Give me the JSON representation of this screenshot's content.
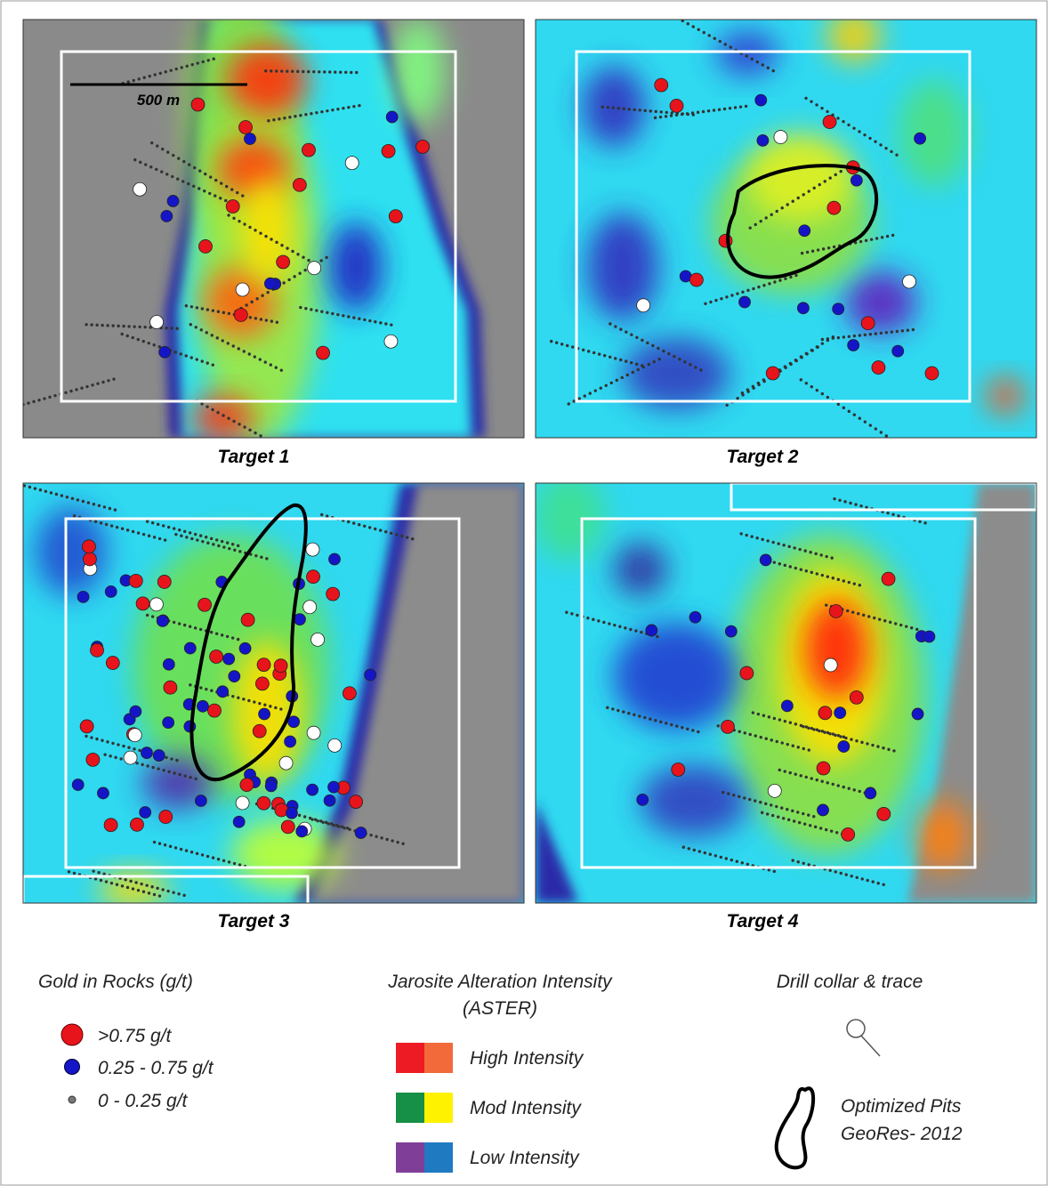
{
  "scale_bar": "500 m",
  "panels": [
    {
      "label": "Target 1"
    },
    {
      "label": "Target 2"
    },
    {
      "label": "Target 3"
    },
    {
      "label": "Target 4"
    }
  ],
  "legend": {
    "gold": {
      "title": "Gold in Rocks (g/t)",
      "items": [
        ">0.75 g/t",
        "0.25 - 0.75 g/t",
        "0 - 0.25 g/t"
      ]
    },
    "jarosite": {
      "title": [
        "Jarosite Alteration Intensity",
        "(ASTER)"
      ],
      "items": [
        "High Intensity",
        "Mod Intensity",
        "Low Intensity"
      ]
    },
    "drill": {
      "title": "Drill collar & trace"
    },
    "pits": {
      "label": [
        "Optimized Pits",
        "GeoRes- 2012"
      ]
    }
  }
}
